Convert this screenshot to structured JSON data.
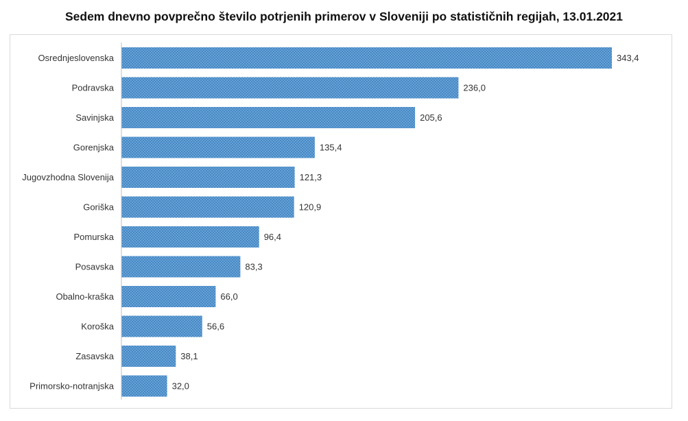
{
  "chart_data": {
    "type": "bar",
    "orientation": "horizontal",
    "title": "Sedem dnevno povprečno število potrjenih primerov v Sloveniji po statističnih regijah, 13.01.2021",
    "categories": [
      "Osrednjeslovenska",
      "Podravska",
      "Savinjska",
      "Gorenjska",
      "Jugovzhodna Slovenija",
      "Goriška",
      "Pomurska",
      "Posavska",
      "Obalno-kraška",
      "Koroška",
      "Zasavska",
      "Primorsko-notranjska"
    ],
    "values": [
      343.4,
      236.0,
      205.6,
      135.4,
      121.3,
      120.9,
      96.4,
      83.3,
      66.0,
      56.6,
      38.1,
      32.0
    ],
    "value_labels": [
      "343,4",
      "236,0",
      "205,6",
      "135,4",
      "121,3",
      "120,9",
      "96,4",
      "83,3",
      "66,0",
      "56,6",
      "38,1",
      "32,0"
    ],
    "xlabel": "",
    "ylabel": "",
    "xlim": [
      0,
      343.4
    ],
    "grid": false,
    "legend": "none",
    "bar_color": "#5b9bd5",
    "bar_pattern": "dotted"
  }
}
